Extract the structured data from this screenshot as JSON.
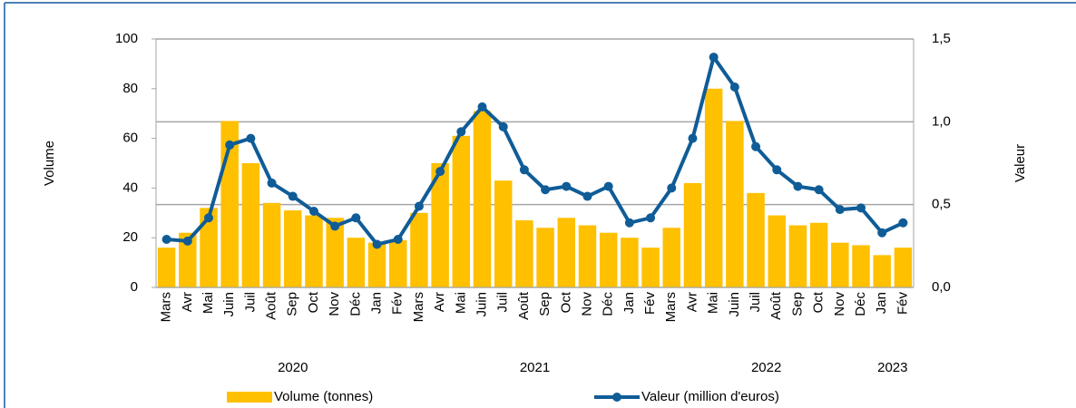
{
  "chart_data": {
    "type": "bar+line",
    "categories": [
      "Mars",
      "Avr",
      "Mai",
      "Juin",
      "Juil",
      "Août",
      "Sep",
      "Oct",
      "Nov",
      "Déc",
      "Jan",
      "Fév",
      "Mars",
      "Avr",
      "Mai",
      "Juin",
      "Juil",
      "Août",
      "Sep",
      "Oct",
      "Nov",
      "Déc",
      "Jan",
      "Fév",
      "Mars",
      "Avr",
      "Mai",
      "Juin",
      "Juil",
      "Août",
      "Sep",
      "Oct",
      "Nov",
      "Déc",
      "Jan",
      "Fév"
    ],
    "year_labels": [
      "2020",
      "2021",
      "2022",
      "2023"
    ],
    "y_label": "Volume",
    "y2_label": "Valeur",
    "ylim": [
      0,
      100
    ],
    "yticks": [
      0,
      20,
      40,
      60,
      80,
      100
    ],
    "y2lim": [
      0,
      1.5
    ],
    "y2ticks": [
      {
        "value": 0,
        "label": "0,0"
      },
      {
        "value": 0.5,
        "label": "0,5"
      },
      {
        "value": 1.0,
        "label": "1,0"
      },
      {
        "value": 1.5,
        "label": "1,5"
      }
    ],
    "grid": "y2",
    "series": [
      {
        "name": "Volume (tonnes)",
        "type": "bar",
        "color": "#ffc000",
        "values": [
          16,
          22,
          32,
          67,
          50,
          34,
          31,
          29,
          28,
          20,
          18,
          19,
          30,
          50,
          61,
          71,
          43,
          27,
          24,
          28,
          25,
          22,
          20,
          16,
          24,
          42,
          80,
          67,
          38,
          29,
          25,
          26,
          18,
          17,
          13,
          16
        ]
      },
      {
        "name": "Valeur (million d'euros)",
        "type": "line",
        "axis": "y2",
        "color": "#0f5c97",
        "values": [
          0.29,
          0.28,
          0.42,
          0.86,
          0.9,
          0.63,
          0.55,
          0.46,
          0.37,
          0.42,
          0.26,
          0.29,
          0.49,
          0.7,
          0.94,
          1.09,
          0.97,
          0.71,
          0.59,
          0.61,
          0.55,
          0.61,
          0.39,
          0.42,
          0.6,
          0.9,
          1.39,
          1.21,
          0.85,
          0.71,
          0.61,
          0.59,
          0.47,
          0.48,
          0.33,
          0.39
        ]
      }
    ]
  }
}
